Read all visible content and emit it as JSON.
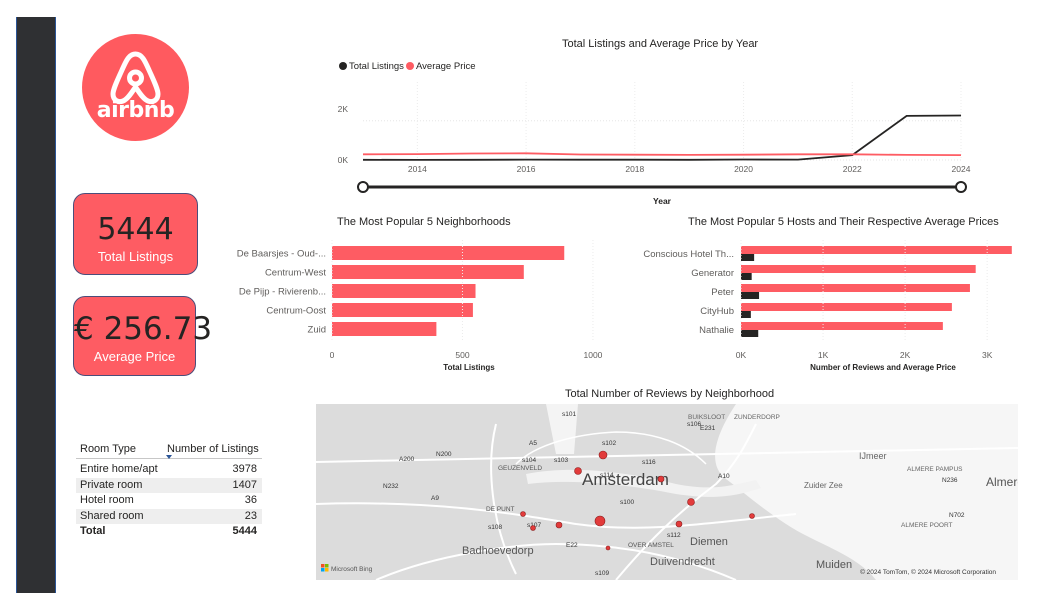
{
  "logo": {
    "text": "airbnb",
    "color": "#ff5a5f"
  },
  "kpis": [
    {
      "value": "5444",
      "label": "Total Listings"
    },
    {
      "value": "€ 256.73",
      "label": "Average Price"
    }
  ],
  "colors": {
    "accent": "#fe5c63",
    "dark": "#252423",
    "sidebar": "#2f3033"
  },
  "line_chart": {
    "title": "Total Listings and Average Price by Year",
    "legend": [
      "Total Listings",
      "Average Price"
    ],
    "xlabel": "Year",
    "x_ticks": [
      "2014",
      "2016",
      "2018",
      "2020",
      "2022",
      "2024"
    ],
    "y_ticks": [
      "2K",
      "0K"
    ]
  },
  "neighborhoods_chart": {
    "title": "The Most Popular 5 Neighborhoods",
    "xlabel": "Total Listings",
    "x_ticks": [
      "0",
      "500",
      "1000"
    ]
  },
  "hosts_chart": {
    "title": "The Most Popular 5 Hosts and Their Respective Average Prices",
    "xlabel": "Number of Reviews and Average Price",
    "x_ticks": [
      "0K",
      "1K",
      "2K",
      "3K"
    ]
  },
  "room_table": {
    "headers": [
      "Room Type",
      "Number of Listings"
    ],
    "rows": [
      {
        "type": "Entire home/apt",
        "count": "3978"
      },
      {
        "type": "Private room",
        "count": "1407"
      },
      {
        "type": "Hotel room",
        "count": "36"
      },
      {
        "type": "Shared room",
        "count": "23"
      }
    ],
    "total": {
      "type": "Total",
      "count": "5444"
    }
  },
  "map": {
    "title": "Total Number of Reviews by Neighborhood",
    "labels": [
      "Amsterdam",
      "Badhoevedorp",
      "Diemen",
      "Duivendrecht",
      "IJmeer",
      "Zuider Zee",
      "Almere",
      "ALMERE PAMPUS",
      "ALMERE POORT",
      "Muiden",
      "DE PUNT",
      "GEUZENVELD",
      "OVER AMSTEL",
      "BUIKSLOOT",
      "ZUNDERDORP"
    ],
    "roads": [
      "s101",
      "s102",
      "s104",
      "s103",
      "s116",
      "s114",
      "s100",
      "s112",
      "s107",
      "s108",
      "s106",
      "s109",
      "A5",
      "A10",
      "A9",
      "A200",
      "N200",
      "N232",
      "N236",
      "N702",
      "E22",
      "E231"
    ],
    "attribution": "© 2024 TomTom, © 2024 Microsoft Corporation",
    "brand": "Microsoft Bing"
  },
  "chart_data": [
    {
      "type": "line",
      "title": "Total Listings and Average Price by Year",
      "xlabel": "Year",
      "ylabel": "",
      "x": [
        2013,
        2014,
        2015,
        2016,
        2017,
        2018,
        2019,
        2020,
        2021,
        2022,
        2023,
        2024
      ],
      "series": [
        {
          "name": "Total Listings",
          "color": "#252423",
          "values": [
            10,
            5,
            10,
            20,
            15,
            15,
            10,
            25,
            20,
            250,
            2250,
            2270
          ]
        },
        {
          "name": "Average Price",
          "color": "#fe5c63",
          "values": [
            290,
            300,
            330,
            340,
            280,
            270,
            260,
            270,
            290,
            290,
            260,
            250
          ]
        }
      ],
      "xlim": [
        2013,
        2024
      ],
      "ylim": [
        0,
        2600
      ],
      "legend": "top-left"
    },
    {
      "type": "bar",
      "orientation": "horizontal",
      "title": "The Most Popular 5 Neighborhoods",
      "xlabel": "Total Listings",
      "categories": [
        "De Baarsjes - Oud-...",
        "Centrum-West",
        "De Pijp - Rivierenb...",
        "Centrum-Oost",
        "Zuid"
      ],
      "values": [
        890,
        735,
        550,
        540,
        400
      ],
      "xlim": [
        0,
        1050
      ],
      "color": "#fe5c63"
    },
    {
      "type": "bar",
      "orientation": "horizontal",
      "title": "The Most Popular 5 Hosts and Their Respective Average Prices",
      "xlabel": "Number of Reviews and Average Price",
      "categories": [
        "Conscious Hotel Th...",
        "Generator",
        "Peter",
        "CityHub",
        "Nathalie"
      ],
      "series": [
        {
          "color": "#fe5c63",
          "values": [
            3300,
            2860,
            2790,
            2570,
            2460
          ]
        },
        {
          "color": "#252423",
          "values": [
            160,
            130,
            220,
            120,
            210
          ]
        }
      ],
      "xlim": [
        0,
        3400
      ]
    }
  ]
}
